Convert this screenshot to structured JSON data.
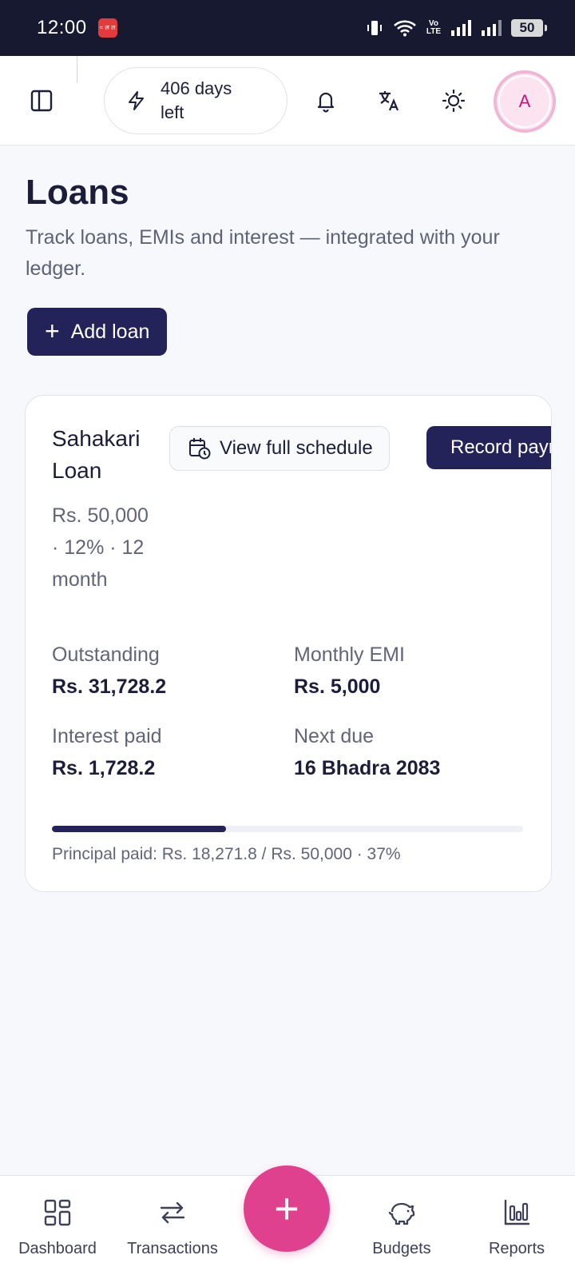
{
  "status_bar": {
    "time": "12:00",
    "notification_badge": "≈ ल ल",
    "volte_line1": "Vo",
    "volte_line2": "LTE",
    "battery": "50"
  },
  "header": {
    "days_left": "406 days left",
    "icons": [
      "sidebar-toggle-icon",
      "lightning-icon",
      "bell-icon",
      "translate-icon",
      "sun-icon"
    ],
    "avatar_initial": "A"
  },
  "page": {
    "title": "Loans",
    "subtitle": "Track loans, EMIs and interest — integrated with your ledger.",
    "add_loan_label": "Add loan"
  },
  "loan": {
    "name": "Sahakari Loan",
    "meta": "Rs. 50,000 · 12% · 12 month",
    "schedule_label": "View full schedule",
    "record_label": "Record payment",
    "outstanding_label": "Outstanding",
    "outstanding_value": "Rs. 31,728.2",
    "emi_label": "Monthly EMI",
    "emi_value": "Rs. 5,000",
    "interest_label": "Interest paid",
    "interest_value": "Rs. 1,728.2",
    "next_due_label": "Next due",
    "next_due_value": "16 Bhadra 2083",
    "progress_percent": 37,
    "progress_caption": "Principal paid: Rs. 18,271.8 / Rs. 50,000 · 37%"
  },
  "nav": {
    "dashboard": "Dashboard",
    "transactions": "Transactions",
    "fab": "+",
    "budgets": "Budgets",
    "reports": "Reports"
  },
  "colors": {
    "primary": "#23235a",
    "accent": "#e0418e",
    "status_bar": "#161930"
  }
}
